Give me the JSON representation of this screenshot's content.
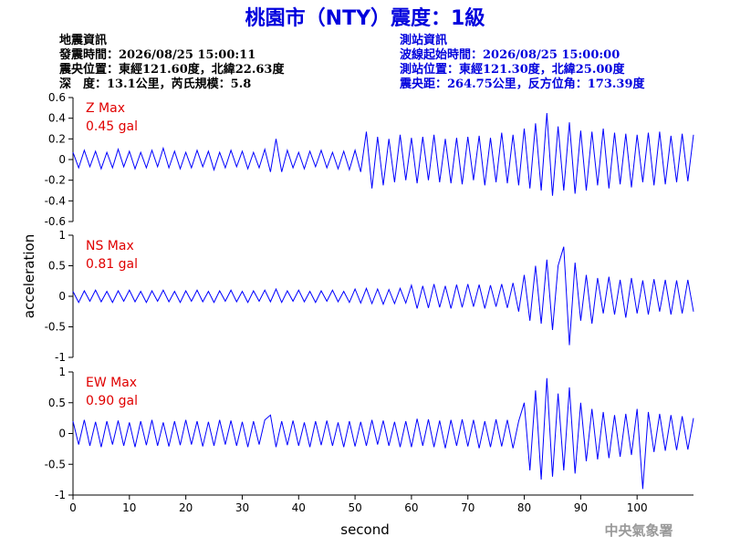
{
  "title": "桃園市（NTY）震度：1級",
  "event_info": {
    "heading": "地震資訊",
    "lines": [
      "發震時間：2026/08/25 15:00:11",
      "震央位置：東經121.60度，北緯22.63度",
      "深　度：13.1公里，芮氏規模：5.8"
    ]
  },
  "station_info": {
    "heading": "測站資訊",
    "lines": [
      "波線起始時間：2026/08/25 15:00:00",
      "測站位置：東經121.30度，北緯25.00度",
      "震央距：264.75公里，反方位角：173.39度"
    ]
  },
  "chart_data": {
    "type": "line",
    "color": "#0000ff",
    "xlabel": "second",
    "ylabel": "acceleration",
    "x": [
      0,
      1,
      2,
      3,
      4,
      5,
      6,
      7,
      8,
      9,
      10,
      11,
      12,
      13,
      14,
      15,
      16,
      17,
      18,
      19,
      20,
      21,
      22,
      23,
      24,
      25,
      26,
      27,
      28,
      29,
      30,
      31,
      32,
      33,
      34,
      35,
      36,
      37,
      38,
      39,
      40,
      41,
      42,
      43,
      44,
      45,
      46,
      47,
      48,
      49,
      50,
      51,
      52,
      53,
      54,
      55,
      56,
      57,
      58,
      59,
      60,
      61,
      62,
      63,
      64,
      65,
      66,
      67,
      68,
      69,
      70,
      71,
      72,
      73,
      74,
      75,
      76,
      77,
      78,
      79,
      80,
      81,
      82,
      83,
      84,
      85,
      86,
      87,
      88,
      89,
      90,
      91,
      92,
      93,
      94,
      95,
      96,
      97,
      98,
      99,
      100,
      101,
      102,
      103,
      104,
      105,
      106,
      107,
      108,
      109,
      110
    ],
    "xlim": [
      0,
      110
    ],
    "xticks": [
      0,
      10,
      20,
      30,
      40,
      50,
      60,
      70,
      80,
      90,
      100
    ],
    "panels": [
      {
        "max_title": "Z Max",
        "max_label": "0.45 gal",
        "ylim": [
          -0.6,
          0.6
        ],
        "yticks": [
          -0.6,
          -0.4,
          -0.2,
          0,
          0.2,
          0.4,
          0.6
        ],
        "values": [
          0.07,
          -0.08,
          0.09,
          -0.07,
          0.08,
          -0.09,
          0.07,
          -0.08,
          0.1,
          -0.07,
          0.08,
          -0.09,
          0.07,
          -0.08,
          0.09,
          -0.07,
          0.11,
          -0.08,
          0.08,
          -0.09,
          0.07,
          -0.08,
          0.09,
          -0.07,
          0.08,
          -0.1,
          0.07,
          -0.08,
          0.09,
          -0.07,
          0.08,
          -0.09,
          0.07,
          -0.08,
          0.1,
          -0.12,
          0.2,
          -0.12,
          0.09,
          -0.08,
          0.07,
          -0.09,
          0.08,
          -0.07,
          0.09,
          -0.08,
          0.07,
          -0.09,
          0.08,
          -0.1,
          0.09,
          -0.12,
          0.27,
          -0.28,
          0.22,
          -0.25,
          0.2,
          -0.22,
          0.24,
          -0.2,
          0.21,
          -0.23,
          0.22,
          -0.2,
          0.24,
          -0.22,
          0.2,
          -0.23,
          0.21,
          -0.24,
          0.22,
          -0.2,
          0.23,
          -0.25,
          0.21,
          -0.22,
          0.26,
          -0.23,
          0.24,
          -0.25,
          0.3,
          -0.28,
          0.35,
          -0.3,
          0.45,
          -0.35,
          0.32,
          -0.3,
          0.36,
          -0.33,
          0.28,
          -0.3,
          0.27,
          -0.25,
          0.3,
          -0.28,
          0.26,
          -0.24,
          0.25,
          -0.27,
          0.24,
          -0.22,
          0.26,
          -0.25,
          0.27,
          -0.24,
          0.23,
          -0.22,
          0.25,
          -0.21,
          0.24
        ]
      },
      {
        "max_title": "NS Max",
        "max_label": "0.81 gal",
        "ylim": [
          -1,
          1
        ],
        "yticks": [
          -1,
          -0.5,
          0,
          0.5,
          1
        ],
        "values": [
          0.08,
          -0.1,
          0.09,
          -0.08,
          0.1,
          -0.09,
          0.08,
          -0.1,
          0.09,
          -0.08,
          0.1,
          -0.09,
          0.08,
          -0.1,
          0.09,
          -0.08,
          0.1,
          -0.09,
          0.08,
          -0.1,
          0.09,
          -0.08,
          0.1,
          -0.09,
          0.08,
          -0.1,
          0.09,
          -0.08,
          0.1,
          -0.09,
          0.08,
          -0.1,
          0.09,
          -0.08,
          0.1,
          -0.09,
          0.12,
          -0.1,
          0.09,
          -0.08,
          0.1,
          -0.09,
          0.08,
          -0.1,
          0.09,
          -0.08,
          0.1,
          -0.09,
          0.08,
          -0.1,
          0.12,
          -0.11,
          0.13,
          -0.12,
          0.12,
          -0.13,
          0.11,
          -0.12,
          0.13,
          -0.11,
          0.18,
          -0.2,
          0.17,
          -0.19,
          0.2,
          -0.18,
          0.17,
          -0.2,
          0.19,
          -0.18,
          0.2,
          -0.17,
          0.19,
          -0.2,
          0.18,
          -0.17,
          0.2,
          -0.19,
          0.22,
          -0.25,
          0.35,
          -0.4,
          0.5,
          -0.45,
          0.6,
          -0.55,
          0.5,
          0.81,
          -0.8,
          0.55,
          -0.4,
          0.35,
          -0.45,
          0.3,
          -0.28,
          0.32,
          -0.3,
          0.27,
          -0.35,
          0.3,
          -0.28,
          0.26,
          -0.3,
          0.28,
          -0.25,
          0.27,
          -0.3,
          0.26,
          -0.28,
          0.27,
          -0.25
        ]
      },
      {
        "max_title": "EW Max",
        "max_label": "0.90 gal",
        "ylim": [
          -1,
          1
        ],
        "yticks": [
          -1,
          -0.5,
          0,
          0.5,
          1
        ],
        "values": [
          0.2,
          -0.18,
          0.22,
          -0.2,
          0.19,
          -0.22,
          0.2,
          -0.18,
          0.21,
          -0.2,
          0.18,
          -0.22,
          0.2,
          -0.19,
          0.22,
          -0.2,
          0.18,
          -0.21,
          0.2,
          -0.19,
          0.22,
          -0.18,
          0.2,
          -0.21,
          0.19,
          -0.2,
          0.22,
          -0.18,
          0.21,
          -0.2,
          0.19,
          -0.22,
          0.2,
          -0.18,
          0.22,
          0.3,
          -0.22,
          0.2,
          -0.19,
          0.21,
          -0.2,
          0.18,
          -0.22,
          0.2,
          -0.19,
          0.21,
          -0.2,
          0.18,
          -0.22,
          0.2,
          -0.21,
          0.19,
          -0.2,
          0.22,
          -0.18,
          0.21,
          -0.2,
          0.19,
          -0.22,
          0.2,
          -0.22,
          0.24,
          -0.2,
          0.23,
          -0.22,
          0.21,
          -0.24,
          0.22,
          -0.2,
          0.23,
          -0.21,
          0.22,
          -0.24,
          0.2,
          -0.22,
          0.23,
          -0.21,
          0.22,
          -0.24,
          0.2,
          0.5,
          -0.6,
          0.7,
          -0.75,
          0.9,
          -0.7,
          0.65,
          -0.6,
          0.75,
          -0.65,
          0.5,
          -0.45,
          0.4,
          -0.42,
          0.35,
          -0.4,
          0.3,
          -0.38,
          0.32,
          -0.35,
          0.4,
          -0.9,
          0.35,
          -0.3,
          0.32,
          -0.28,
          0.3,
          -0.27,
          0.28,
          -0.26,
          0.25
        ]
      }
    ]
  },
  "footer": "中央氣象署"
}
